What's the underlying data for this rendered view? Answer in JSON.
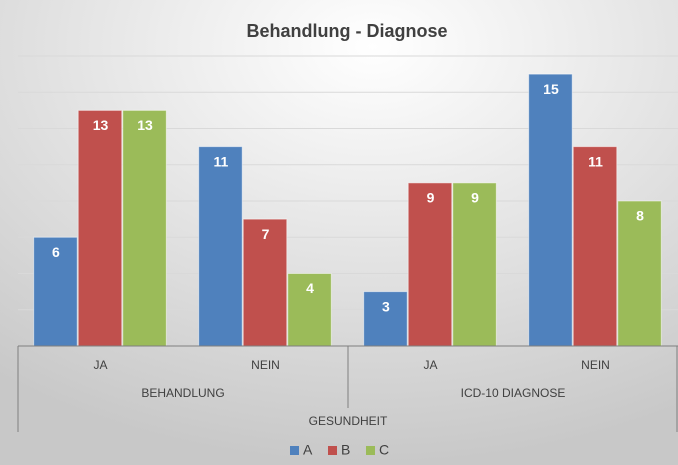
{
  "chart_data": {
    "type": "bar",
    "title": "Behandlung - Diagnose",
    "categories": [
      "JA",
      "NEIN",
      "JA",
      "NEIN"
    ],
    "category_groups": [
      "BEHANDLUNG",
      "ICD-10 DIAGNOSE"
    ],
    "category_supergroup": "GESUNDHEIT",
    "series": [
      {
        "name": "A",
        "color": "#4f81bd",
        "values": [
          6,
          11,
          3,
          15
        ]
      },
      {
        "name": "B",
        "color": "#c0504d",
        "values": [
          13,
          7,
          9,
          11
        ]
      },
      {
        "name": "C",
        "color": "#9bbb59",
        "values": [
          13,
          4,
          9,
          8
        ]
      }
    ],
    "ylim": [
      0,
      16
    ],
    "yticks": [
      0,
      2,
      4,
      6,
      8,
      10,
      12,
      14,
      16
    ],
    "grid": true,
    "legend": "bottom"
  }
}
